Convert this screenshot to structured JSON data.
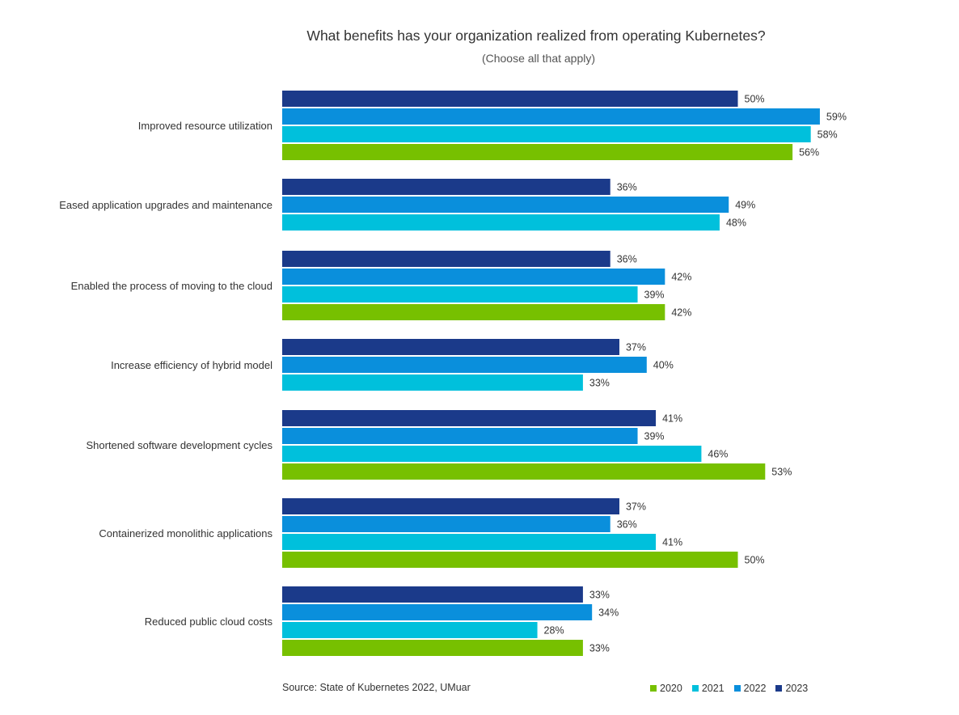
{
  "chart_data": {
    "type": "bar",
    "orientation": "horizontal",
    "title": "What benefits has your organization realized from operating Kubernetes?",
    "subtitle": "(Choose all that apply)",
    "source": "Source: State of Kubernetes 2022, UMuar",
    "value_suffix": "%",
    "xlim": [
      0,
      100
    ],
    "grid": false,
    "legend_position": "bottom-right",
    "categories": [
      "Improved resource utilization",
      "Eased application upgrades and maintenance",
      "Enabled the process of moving to the cloud",
      "Increase efficiency of hybrid model",
      "Shortened software development cycles",
      "Containerized monolithic applications",
      "Reduced public cloud costs"
    ],
    "series": [
      {
        "name": "2023",
        "color": "#1b3a8a",
        "values": [
          50,
          36,
          36,
          37,
          41,
          37,
          33
        ]
      },
      {
        "name": "2022",
        "color": "#0a8fdc",
        "values": [
          59,
          49,
          42,
          40,
          39,
          36,
          34
        ]
      },
      {
        "name": "2021",
        "color": "#00c0dc",
        "values": [
          58,
          48,
          39,
          33,
          46,
          41,
          28
        ]
      },
      {
        "name": "2020",
        "color": "#77c000",
        "values": [
          56,
          null,
          42,
          null,
          53,
          50,
          33
        ]
      }
    ],
    "legend": [
      {
        "name": "2020",
        "color": "#77c000"
      },
      {
        "name": "2021",
        "color": "#00c0dc"
      },
      {
        "name": "2022",
        "color": "#0a8fdc"
      },
      {
        "name": "2023",
        "color": "#1b3a8a"
      }
    ]
  }
}
